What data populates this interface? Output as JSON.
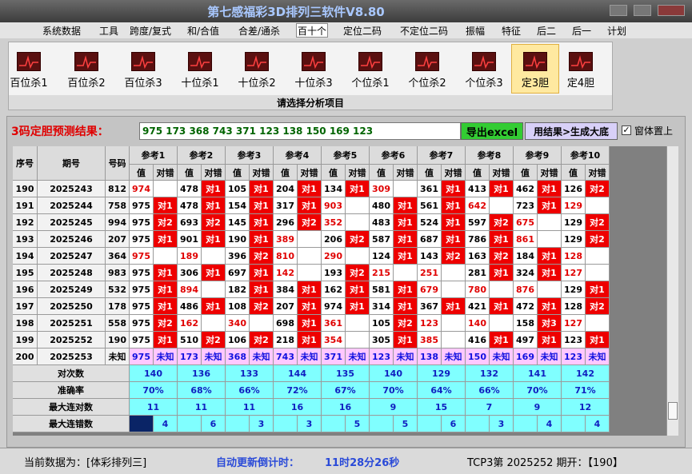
{
  "window": {
    "title": "第七感福彩3D排列三软件V8.80"
  },
  "menu": {
    "items": [
      "系统数据",
      "工具",
      "跨度/复式",
      "和/合值",
      "合差/通杀",
      "百十个",
      "定位二码",
      "不定位二码",
      "振幅",
      "特征",
      "后二",
      "后一",
      "计划"
    ],
    "selected": 5
  },
  "toolbar": {
    "buttons": [
      "百位杀1",
      "百位杀2",
      "百位杀3",
      "十位杀1",
      "十位杀2",
      "十位杀3",
      "个位杀1",
      "个位杀2",
      "个位杀3",
      "定3胆",
      "定4胆"
    ],
    "selected": 9,
    "caption": "请选择分析项目"
  },
  "prediction": {
    "label": "3码定胆预测结果：",
    "result": "975 173 368 743 371 123 138 150 169 123",
    "export_button": "导出excel",
    "generate_button": "用结果>生成大底",
    "checkbox": {
      "label": "窗体置上",
      "checked": true
    }
  },
  "table": {
    "headers": {
      "seq": "序号",
      "issue": "期号",
      "number": "号码",
      "references": [
        "参考1",
        "参考2",
        "参考3",
        "参考4",
        "参考5",
        "参考6",
        "参考7",
        "参考8",
        "参考9",
        "参考10"
      ],
      "value": "值",
      "result": "对错"
    },
    "rows": [
      {
        "seq": "190",
        "issue": "2025243",
        "number": "812",
        "cells": [
          [
            "974",
            null
          ],
          [
            "478",
            "对1"
          ],
          [
            "105",
            "对1"
          ],
          [
            "204",
            "对1"
          ],
          [
            "134",
            "对1"
          ],
          [
            "309",
            null
          ],
          [
            "361",
            "对1"
          ],
          [
            "413",
            "对1"
          ],
          [
            "462",
            "对1"
          ],
          [
            "126",
            "对2"
          ]
        ]
      },
      {
        "seq": "191",
        "issue": "2025244",
        "number": "758",
        "cells": [
          [
            "975",
            "对1"
          ],
          [
            "478",
            "对1"
          ],
          [
            "154",
            "对1"
          ],
          [
            "317",
            "对1"
          ],
          [
            "903",
            null
          ],
          [
            "480",
            "对1"
          ],
          [
            "561",
            "对1"
          ],
          [
            "642",
            null
          ],
          [
            "723",
            "对1"
          ],
          [
            "129",
            null
          ]
        ]
      },
      {
        "seq": "192",
        "issue": "2025245",
        "number": "994",
        "cells": [
          [
            "975",
            "对2"
          ],
          [
            "693",
            "对2"
          ],
          [
            "145",
            "对1"
          ],
          [
            "296",
            "对2"
          ],
          [
            "352",
            null
          ],
          [
            "483",
            "对1"
          ],
          [
            "524",
            "对1"
          ],
          [
            "597",
            "对2"
          ],
          [
            "675",
            null
          ],
          [
            "129",
            "对2"
          ]
        ]
      },
      {
        "seq": "193",
        "issue": "2025246",
        "number": "207",
        "cells": [
          [
            "975",
            "对1"
          ],
          [
            "901",
            "对1"
          ],
          [
            "190",
            "对1"
          ],
          [
            "389",
            null
          ],
          [
            "206",
            "对2"
          ],
          [
            "587",
            "对1"
          ],
          [
            "687",
            "对1"
          ],
          [
            "786",
            "对1"
          ],
          [
            "861",
            null
          ],
          [
            "129",
            "对2"
          ]
        ]
      },
      {
        "seq": "194",
        "issue": "2025247",
        "number": "364",
        "cells": [
          [
            "975",
            null
          ],
          [
            "189",
            null
          ],
          [
            "396",
            "对2"
          ],
          [
            "810",
            null
          ],
          [
            "290",
            null
          ],
          [
            "124",
            "对1"
          ],
          [
            "143",
            "对2"
          ],
          [
            "163",
            "对2"
          ],
          [
            "184",
            "对1"
          ],
          [
            "128",
            null
          ]
        ]
      },
      {
        "seq": "195",
        "issue": "2025248",
        "number": "983",
        "cells": [
          [
            "975",
            "对1"
          ],
          [
            "306",
            "对1"
          ],
          [
            "697",
            "对1"
          ],
          [
            "142",
            null
          ],
          [
            "193",
            "对2"
          ],
          [
            "215",
            null
          ],
          [
            "251",
            null
          ],
          [
            "281",
            "对1"
          ],
          [
            "324",
            "对1"
          ],
          [
            "127",
            null
          ]
        ]
      },
      {
        "seq": "196",
        "issue": "2025249",
        "number": "532",
        "cells": [
          [
            "975",
            "对1"
          ],
          [
            "894",
            null
          ],
          [
            "182",
            "对1"
          ],
          [
            "384",
            "对1"
          ],
          [
            "162",
            "对1"
          ],
          [
            "581",
            "对1"
          ],
          [
            "679",
            null
          ],
          [
            "780",
            null
          ],
          [
            "876",
            null
          ],
          [
            "129",
            "对1"
          ]
        ]
      },
      {
        "seq": "197",
        "issue": "2025250",
        "number": "178",
        "cells": [
          [
            "975",
            "对1"
          ],
          [
            "486",
            "对1"
          ],
          [
            "108",
            "对2"
          ],
          [
            "207",
            "对1"
          ],
          [
            "974",
            "对1"
          ],
          [
            "314",
            "对1"
          ],
          [
            "367",
            "对1"
          ],
          [
            "421",
            "对1"
          ],
          [
            "472",
            "对1"
          ],
          [
            "128",
            "对2"
          ]
        ]
      },
      {
        "seq": "198",
        "issue": "2025251",
        "number": "558",
        "cells": [
          [
            "975",
            "对2"
          ],
          [
            "162",
            null
          ],
          [
            "340",
            null
          ],
          [
            "698",
            "对1"
          ],
          [
            "361",
            null
          ],
          [
            "105",
            "对2"
          ],
          [
            "123",
            null
          ],
          [
            "140",
            null
          ],
          [
            "158",
            "对3"
          ],
          [
            "127",
            null
          ]
        ]
      },
      {
        "seq": "199",
        "issue": "2025252",
        "number": "190",
        "cells": [
          [
            "975",
            "对1"
          ],
          [
            "510",
            "对2"
          ],
          [
            "106",
            "对2"
          ],
          [
            "218",
            "对1"
          ],
          [
            "354",
            null
          ],
          [
            "305",
            "对1"
          ],
          [
            "385",
            null
          ],
          [
            "416",
            "对1"
          ],
          [
            "497",
            "对1"
          ],
          [
            "123",
            "对1"
          ]
        ]
      },
      {
        "seq": "200",
        "issue": "2025253",
        "number": "未知",
        "cells": [
          [
            "975",
            "未知"
          ],
          [
            "173",
            "未知"
          ],
          [
            "368",
            "未知"
          ],
          [
            "743",
            "未知"
          ],
          [
            "371",
            "未知"
          ],
          [
            "123",
            "未知"
          ],
          [
            "138",
            "未知"
          ],
          [
            "150",
            "未知"
          ],
          [
            "169",
            "未知"
          ],
          [
            "123",
            "未知"
          ]
        ]
      }
    ],
    "summary": [
      {
        "label": "对次数",
        "values": [
          "140",
          "136",
          "133",
          "144",
          "135",
          "140",
          "129",
          "132",
          "141",
          "142"
        ]
      },
      {
        "label": "准确率",
        "values": [
          "70%",
          "68%",
          "66%",
          "72%",
          "67%",
          "70%",
          "64%",
          "66%",
          "70%",
          "71%"
        ]
      },
      {
        "label": "最大连对数",
        "values": [
          "11",
          "11",
          "11",
          "16",
          "16",
          "9",
          "15",
          "7",
          "9",
          "12"
        ]
      },
      {
        "label": "最大连错数",
        "values": [
          "4",
          "6",
          "3",
          "3",
          "5",
          "5",
          "6",
          "3",
          "4",
          "4"
        ]
      }
    ]
  },
  "status": {
    "data_source": "当前数据为：[体彩排列三]",
    "countdown_label": "自动更新倒计时：",
    "countdown": "11时28分26秒",
    "issue_info": "TCP3第 2025252 期开：【190】"
  }
}
